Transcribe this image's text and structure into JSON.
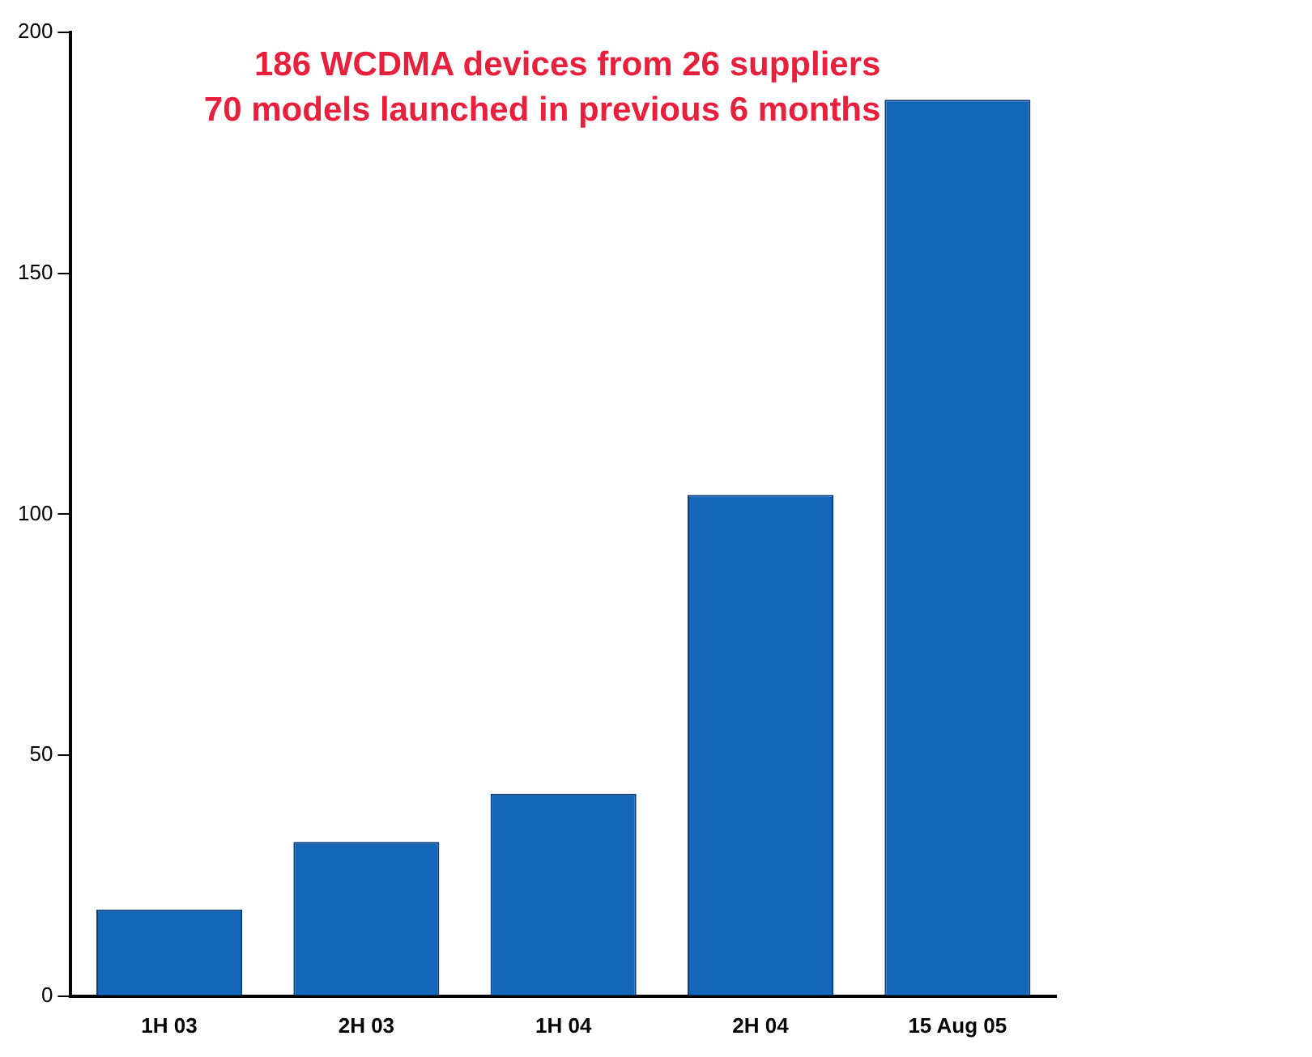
{
  "chart_data": {
    "type": "bar",
    "categories": [
      "1H 03",
      "2H 03",
      "1H 04",
      "2H 04",
      "15 Aug 05"
    ],
    "values": [
      18,
      32,
      42,
      104,
      186
    ],
    "color": "#1466b8",
    "ylim": [
      0,
      200
    ],
    "yticks": [
      0,
      50,
      100,
      150,
      200
    ],
    "grid": false,
    "legend": false,
    "annotations": [
      "186 WCDMA devices from 26 suppliers",
      "70 models launched in previous 6 months"
    ]
  }
}
